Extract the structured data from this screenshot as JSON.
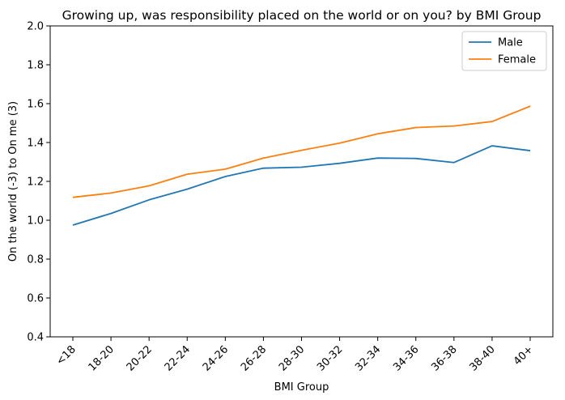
{
  "chart_data": {
    "type": "line",
    "title": "Growing up, was responsibility placed on the world or on you? by BMI Group",
    "xlabel": "BMI Group",
    "ylabel": "On the world (-3) to On me (3)",
    "categories": [
      "<18",
      "18-20",
      "20-22",
      "22-24",
      "24-26",
      "26-28",
      "28-30",
      "30-32",
      "32-34",
      "34-36",
      "36-38",
      "38-40",
      "40+"
    ],
    "ylim": [
      0.4,
      2.0
    ],
    "yticks": [
      "0.4",
      "0.6",
      "0.8",
      "1.0",
      "1.2",
      "1.4",
      "1.6",
      "1.8",
      "2.0"
    ],
    "grid": false,
    "legend_position": "top-right",
    "series": [
      {
        "name": "Male",
        "color": "#1f77b4",
        "values": [
          0.975,
          1.035,
          1.105,
          1.16,
          1.225,
          1.268,
          1.273,
          1.293,
          1.32,
          1.318,
          1.297,
          1.383,
          1.358
        ]
      },
      {
        "name": "Female",
        "color": "#ff7f0e",
        "values": [
          1.118,
          1.14,
          1.177,
          1.237,
          1.263,
          1.32,
          1.36,
          1.397,
          1.445,
          1.477,
          1.485,
          1.508,
          1.587
        ]
      }
    ]
  }
}
